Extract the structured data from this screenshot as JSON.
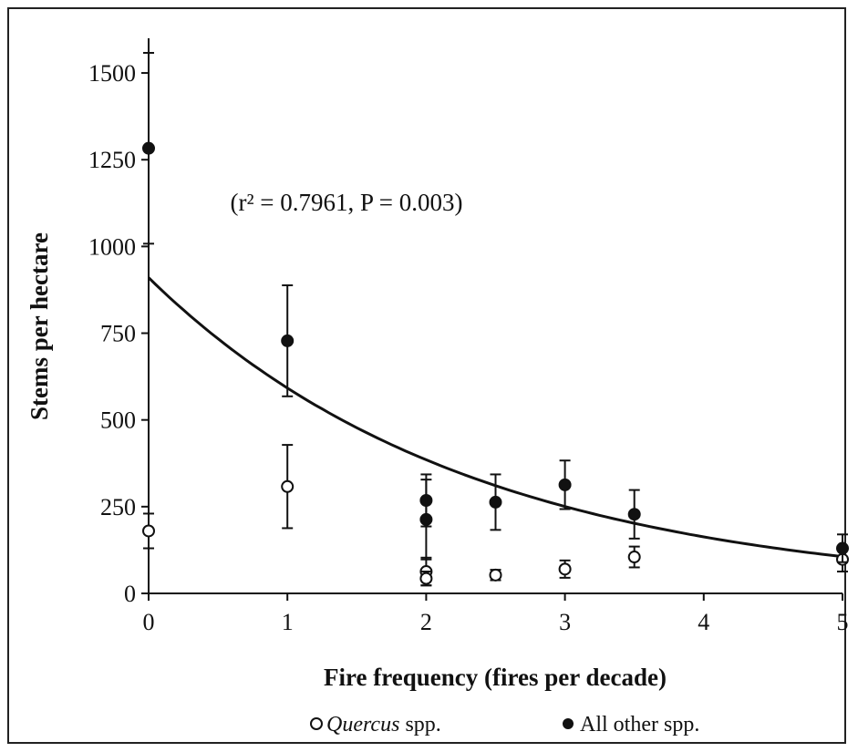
{
  "chart_data": {
    "type": "scatter",
    "xlabel": "Fire frequency (fires per decade)",
    "ylabel": "Stems per hectare",
    "xlim": [
      0,
      5
    ],
    "ylim": [
      0,
      1600
    ],
    "x_ticks": [
      "0",
      "1",
      "2",
      "3",
      "4",
      "5"
    ],
    "y_ticks": [
      "0",
      "250",
      "500",
      "750",
      "1000",
      "1250",
      "1500"
    ],
    "annotation": "(r² = 0.7961, P = 0.003)",
    "grid": false,
    "legend_position": "bottom",
    "series": [
      {
        "name": "Quercus spp.",
        "marker": "open-circle",
        "color": "#111111",
        "points": [
          {
            "x": 0,
            "y": 180,
            "err": 50
          },
          {
            "x": 1,
            "y": 308,
            "err": 120
          },
          {
            "x": 2,
            "y": 63,
            "err": 40
          },
          {
            "x": 2,
            "y": 43,
            "err": 20
          },
          {
            "x": 2.5,
            "y": 53,
            "err": 15
          },
          {
            "x": 3,
            "y": 70,
            "err": 25
          },
          {
            "x": 3.5,
            "y": 105,
            "err": 30
          },
          {
            "x": 5,
            "y": 98,
            "err": 35
          }
        ]
      },
      {
        "name": "All other spp.",
        "marker": "filled-circle",
        "color": "#111111",
        "points": [
          {
            "x": 0,
            "y": 1283,
            "err": 275
          },
          {
            "x": 1,
            "y": 728,
            "err": 160
          },
          {
            "x": 2,
            "y": 268,
            "err": 75
          },
          {
            "x": 2,
            "y": 213,
            "err": 115
          },
          {
            "x": 2.5,
            "y": 263,
            "err": 80
          },
          {
            "x": 3,
            "y": 313,
            "err": 70
          },
          {
            "x": 3.5,
            "y": 228,
            "err": 70
          },
          {
            "x": 5,
            "y": 130,
            "err": 40
          }
        ]
      }
    ],
    "fit": {
      "type": "exponential",
      "a": 910,
      "b": -0.43,
      "x_range": [
        0,
        5
      ]
    }
  }
}
